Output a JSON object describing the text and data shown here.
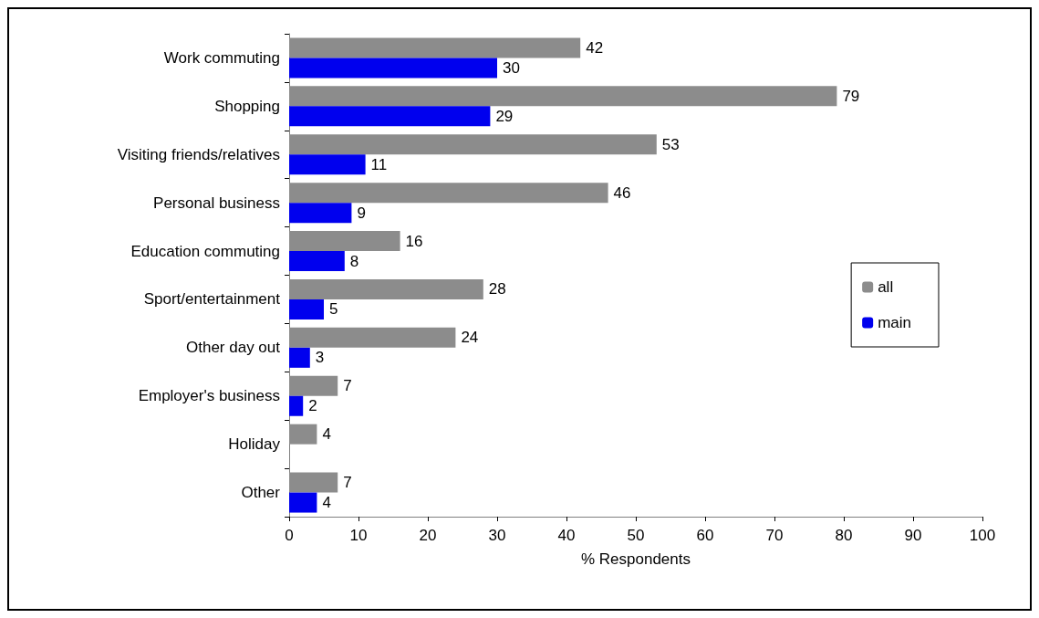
{
  "chart_data": {
    "type": "bar",
    "orientation": "horizontal",
    "xlabel": "% Respondents",
    "categories": [
      "Work commuting",
      "Shopping",
      "Visiting friends/relatives",
      "Personal business",
      "Education commuting",
      "Sport/entertainment",
      "Other day out",
      "Employer's business",
      "Holiday",
      "Other"
    ],
    "series": [
      {
        "name": "all",
        "color": "#8c8c8c",
        "values": [
          42,
          79,
          53,
          46,
          16,
          28,
          24,
          7,
          4,
          7
        ]
      },
      {
        "name": "main",
        "color": "#0000ee",
        "values": [
          30,
          29,
          11,
          9,
          8,
          5,
          3,
          2,
          null,
          4
        ]
      }
    ],
    "xlim": [
      0,
      100
    ],
    "xticks": [
      0,
      10,
      20,
      30,
      40,
      50,
      60,
      70,
      80,
      90,
      100
    ],
    "data_labels": true,
    "grid": false,
    "legend": "right"
  }
}
